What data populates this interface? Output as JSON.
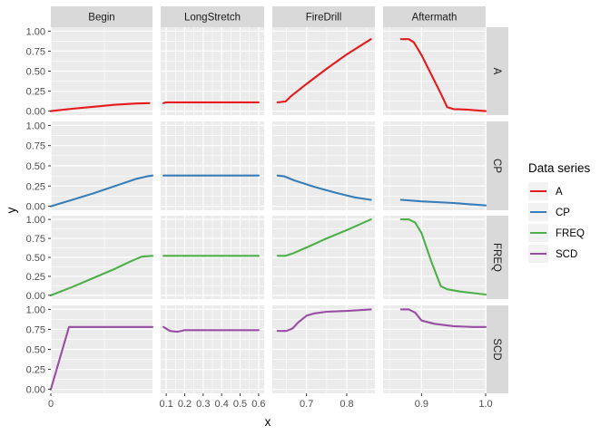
{
  "chart_data": {
    "type": "line",
    "facet_columns": [
      "Begin",
      "LongStretch",
      "FireDrill",
      "Aftermath"
    ],
    "facet_rows": [
      "A",
      "CP",
      "FREQ",
      "SCD"
    ],
    "xlabel": "x",
    "ylabel": "y",
    "ylim": [
      0,
      1
    ],
    "y_ticks": [
      0.0,
      0.25,
      0.5,
      0.75,
      1.0
    ],
    "y_tick_labels": [
      "0.00",
      "0.25",
      "0.50",
      "0.75",
      "1.00"
    ],
    "scales": "free_x",
    "columns": {
      "Begin": {
        "xlim": [
          0,
          0.095
        ],
        "ticks": [
          0
        ],
        "tick_labels": [
          "0"
        ]
      },
      "LongStretch": {
        "xlim": [
          0.07,
          0.63
        ],
        "ticks": [
          0.1,
          0.2,
          0.3,
          0.4,
          0.5,
          0.6
        ],
        "tick_labels": [
          "0.1",
          "0.2",
          "0.3",
          "0.4",
          "0.5",
          "0.6"
        ]
      },
      "FireDrill": {
        "xlim": [
          0.615,
          0.87
        ],
        "ticks": [
          0.7,
          0.8
        ],
        "tick_labels": [
          "0.7",
          "0.8"
        ]
      },
      "Aftermath": {
        "xlim": [
          0.84,
          1.0
        ],
        "ticks": [
          0.9,
          1.0
        ],
        "tick_labels": [
          "0.9",
          "1.0"
        ]
      }
    },
    "legend": {
      "title": "Data series",
      "position": "right",
      "entries": [
        "A",
        "CP",
        "FREQ",
        "SCD"
      ]
    },
    "colors": {
      "A": "#e41a1c",
      "CP": "#377eb8",
      "FREQ": "#4daf4a",
      "SCD": "#984ea3"
    },
    "grid": true,
    "series": [
      {
        "name": "A",
        "panels": {
          "Begin": [
            [
              0,
              0.0
            ],
            [
              0.02,
              0.03
            ],
            [
              0.04,
              0.055
            ],
            [
              0.06,
              0.08
            ],
            [
              0.08,
              0.095
            ],
            [
              0.092,
              0.1
            ]
          ],
          "LongStretch": [
            [
              0.085,
              0.1
            ],
            [
              0.1,
              0.11
            ],
            [
              0.3,
              0.11
            ],
            [
              0.6,
              0.11
            ]
          ],
          "FireDrill": [
            [
              0.628,
              0.11
            ],
            [
              0.648,
              0.12
            ],
            [
              0.66,
              0.18
            ],
            [
              0.7,
              0.34
            ],
            [
              0.75,
              0.53
            ],
            [
              0.8,
              0.71
            ],
            [
              0.86,
              0.9
            ]
          ],
          "Aftermath": [
            [
              0.868,
              0.9
            ],
            [
              0.88,
              0.9
            ],
            [
              0.888,
              0.86
            ],
            [
              0.9,
              0.7
            ],
            [
              0.915,
              0.46
            ],
            [
              0.93,
              0.22
            ],
            [
              0.94,
              0.05
            ],
            [
              0.95,
              0.025
            ],
            [
              0.97,
              0.02
            ],
            [
              1.0,
              0.0
            ]
          ]
        }
      },
      {
        "name": "CP",
        "panels": {
          "Begin": [
            [
              0,
              0.0
            ],
            [
              0.02,
              0.08
            ],
            [
              0.04,
              0.16
            ],
            [
              0.06,
              0.25
            ],
            [
              0.08,
              0.34
            ],
            [
              0.09,
              0.37
            ],
            [
              0.095,
              0.38
            ]
          ],
          "LongStretch": [
            [
              0.085,
              0.38
            ],
            [
              0.3,
              0.38
            ],
            [
              0.6,
              0.38
            ]
          ],
          "FireDrill": [
            [
              0.628,
              0.38
            ],
            [
              0.645,
              0.37
            ],
            [
              0.67,
              0.32
            ],
            [
              0.72,
              0.24
            ],
            [
              0.77,
              0.17
            ],
            [
              0.82,
              0.11
            ],
            [
              0.86,
              0.08
            ]
          ],
          "Aftermath": [
            [
              0.868,
              0.08
            ],
            [
              0.9,
              0.06
            ],
            [
              0.95,
              0.04
            ],
            [
              1.0,
              0.01
            ]
          ]
        }
      },
      {
        "name": "FREQ",
        "panels": {
          "Begin": [
            [
              0,
              0.0
            ],
            [
              0.02,
              0.11
            ],
            [
              0.04,
              0.23
            ],
            [
              0.06,
              0.35
            ],
            [
              0.075,
              0.45
            ],
            [
              0.085,
              0.51
            ],
            [
              0.095,
              0.52
            ]
          ],
          "LongStretch": [
            [
              0.085,
              0.52
            ],
            [
              0.3,
              0.52
            ],
            [
              0.6,
              0.52
            ]
          ],
          "FireDrill": [
            [
              0.628,
              0.52
            ],
            [
              0.648,
              0.52
            ],
            [
              0.665,
              0.55
            ],
            [
              0.7,
              0.63
            ],
            [
              0.75,
              0.75
            ],
            [
              0.8,
              0.86
            ],
            [
              0.86,
              1.0
            ]
          ],
          "Aftermath": [
            [
              0.868,
              1.0
            ],
            [
              0.88,
              1.0
            ],
            [
              0.89,
              0.96
            ],
            [
              0.9,
              0.82
            ],
            [
              0.915,
              0.45
            ],
            [
              0.93,
              0.12
            ],
            [
              0.94,
              0.08
            ],
            [
              0.96,
              0.05
            ],
            [
              1.0,
              0.01
            ]
          ]
        }
      },
      {
        "name": "SCD",
        "panels": {
          "Begin": [
            [
              0,
              0.0
            ],
            [
              0.017,
              0.78
            ],
            [
              0.05,
              0.78
            ],
            [
              0.095,
              0.78
            ]
          ],
          "LongStretch": [
            [
              0.085,
              0.78
            ],
            [
              0.12,
              0.73
            ],
            [
              0.16,
              0.72
            ],
            [
              0.2,
              0.74
            ],
            [
              0.3,
              0.74
            ],
            [
              0.6,
              0.74
            ]
          ],
          "FireDrill": [
            [
              0.628,
              0.73
            ],
            [
              0.65,
              0.73
            ],
            [
              0.665,
              0.76
            ],
            [
              0.68,
              0.84
            ],
            [
              0.7,
              0.92
            ],
            [
              0.72,
              0.95
            ],
            [
              0.75,
              0.97
            ],
            [
              0.8,
              0.98
            ],
            [
              0.86,
              1.0
            ]
          ],
          "Aftermath": [
            [
              0.868,
              1.0
            ],
            [
              0.88,
              1.0
            ],
            [
              0.89,
              0.96
            ],
            [
              0.9,
              0.86
            ],
            [
              0.92,
              0.82
            ],
            [
              0.95,
              0.79
            ],
            [
              0.98,
              0.78
            ],
            [
              1.0,
              0.78
            ]
          ]
        }
      }
    ]
  }
}
